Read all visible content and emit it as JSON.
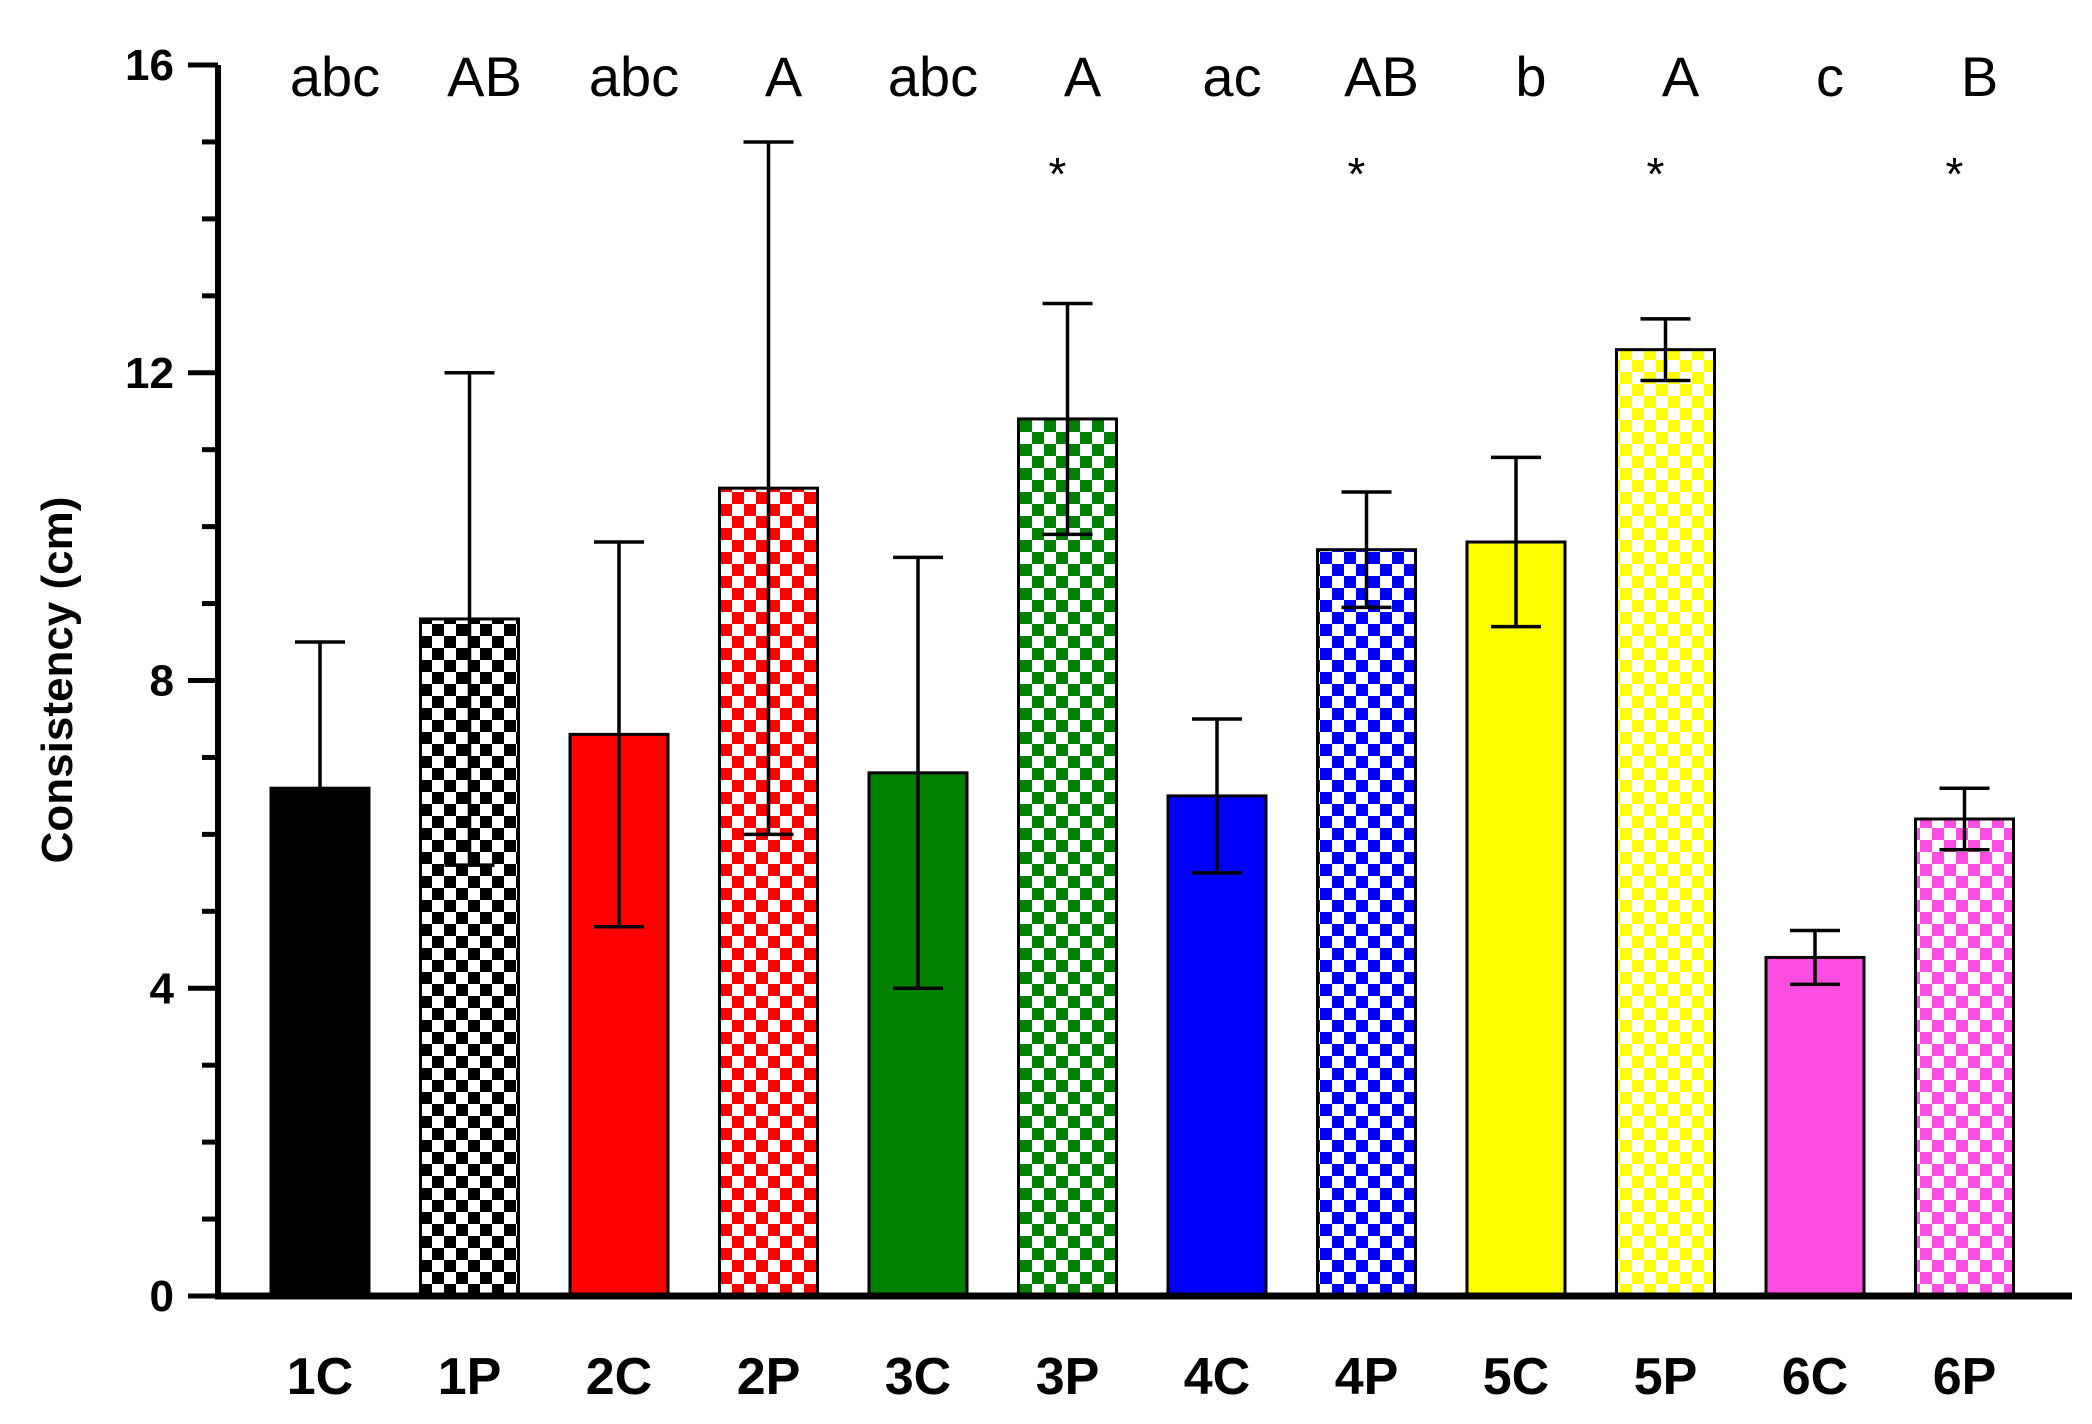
{
  "chart_data": {
    "type": "bar",
    "title": "",
    "xlabel": "",
    "ylabel": "Consistency (cm)",
    "ylim": [
      0,
      16
    ],
    "yticks": [
      0,
      4,
      8,
      12,
      16
    ],
    "categories": [
      "1C",
      "1P",
      "2C",
      "2P",
      "3C",
      "3P",
      "4C",
      "4P",
      "5C",
      "5P",
      "6C",
      "6P"
    ],
    "values": [
      6.6,
      8.8,
      7.3,
      10.5,
      6.8,
      11.4,
      6.5,
      9.7,
      9.8,
      12.3,
      4.4,
      6.2
    ],
    "errors": [
      1.9,
      3.2,
      2.5,
      4.5,
      2.8,
      1.5,
      1.0,
      0.75,
      1.1,
      0.4,
      0.35,
      0.4
    ],
    "colors": [
      "#000000",
      "#000000",
      "#ff0000",
      "#ff0000",
      "#008000",
      "#008000",
      "#0000ff",
      "#0000ff",
      "#ffff00",
      "#ffff00",
      "#ff4de1",
      "#ff4de1"
    ],
    "patterned": [
      false,
      true,
      false,
      true,
      false,
      true,
      false,
      true,
      false,
      true,
      false,
      true
    ],
    "letters": [
      "abc",
      "AB",
      "abc",
      "A",
      "abc",
      "A",
      "ac",
      "AB",
      "b",
      "A",
      "c",
      "B"
    ],
    "asterisks": [
      "",
      "",
      "",
      "",
      "",
      "*",
      "",
      "*",
      "",
      "*",
      "",
      "*"
    ]
  }
}
